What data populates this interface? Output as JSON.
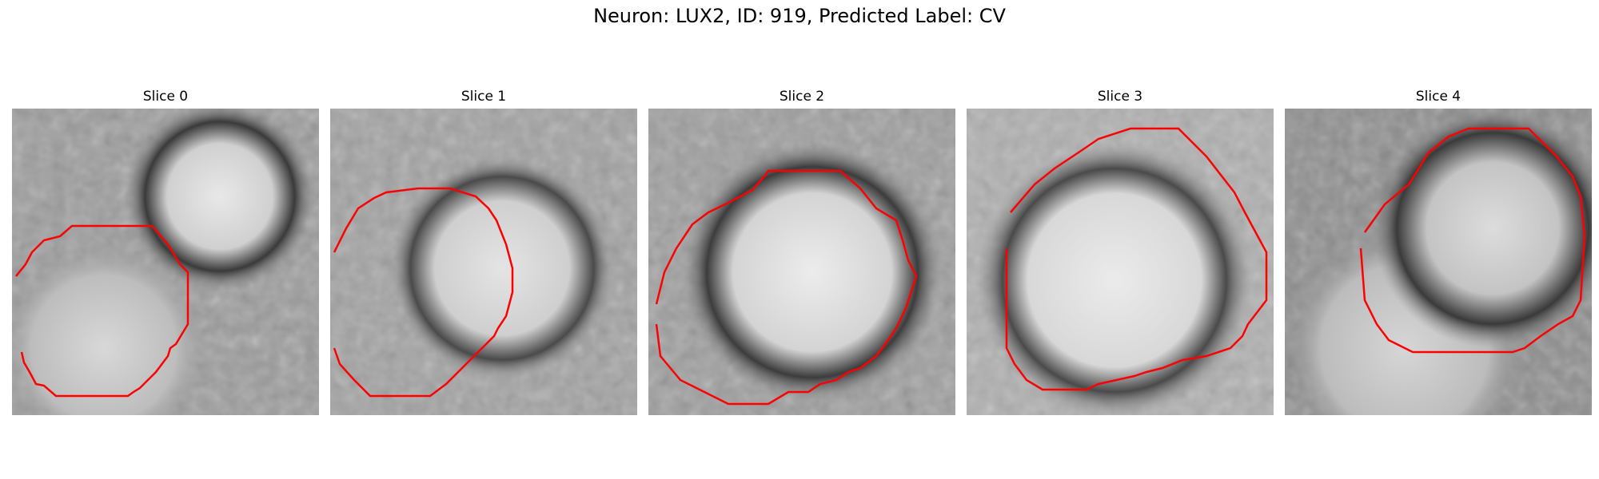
{
  "figure": {
    "title": "Neuron: LUX2, ID: 919, Predicted Label: CV"
  },
  "panels": [
    {
      "title": "Slice 0"
    },
    {
      "title": "Slice 1"
    },
    {
      "title": "Slice 2"
    },
    {
      "title": "Slice 3"
    },
    {
      "title": "Slice 4"
    }
  ],
  "colors": {
    "contour": "#ff0000"
  }
}
